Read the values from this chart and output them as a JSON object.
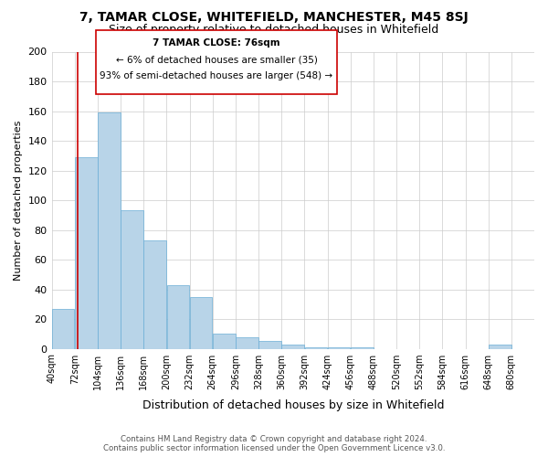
{
  "title": "7, TAMAR CLOSE, WHITEFIELD, MANCHESTER, M45 8SJ",
  "subtitle": "Size of property relative to detached houses in Whitefield",
  "xlabel": "Distribution of detached houses by size in Whitefield",
  "ylabel": "Number of detached properties",
  "bins": [
    40,
    72,
    104,
    136,
    168,
    200,
    232,
    264,
    296,
    328,
    360,
    392,
    424,
    456,
    488,
    520,
    552,
    584,
    616,
    648,
    680
  ],
  "counts": [
    27,
    129,
    159,
    93,
    73,
    43,
    35,
    10,
    8,
    5,
    3,
    1,
    1,
    1,
    0,
    0,
    0,
    0,
    0,
    3
  ],
  "bar_color": "#b8d4e8",
  "bar_edge_color": "#6aaed6",
  "vline_x": 76,
  "vline_color": "#cc0000",
  "ylim": [
    0,
    200
  ],
  "yticks": [
    0,
    20,
    40,
    60,
    80,
    100,
    120,
    140,
    160,
    180,
    200
  ],
  "annotation_title": "7 TAMAR CLOSE: 76sqm",
  "annotation_line1": "← 6% of detached houses are smaller (35)",
  "annotation_line2": "93% of semi-detached houses are larger (548) →",
  "annotation_box_color": "#ffffff",
  "annotation_box_edge": "#cc0000",
  "footer_line1": "Contains HM Land Registry data © Crown copyright and database right 2024.",
  "footer_line2": "Contains public sector information licensed under the Open Government Licence v3.0.",
  "tick_labels": [
    "40sqm",
    "72sqm",
    "104sqm",
    "136sqm",
    "168sqm",
    "200sqm",
    "232sqm",
    "264sqm",
    "296sqm",
    "328sqm",
    "360sqm",
    "392sqm",
    "424sqm",
    "456sqm",
    "488sqm",
    "520sqm",
    "552sqm",
    "584sqm",
    "616sqm",
    "648sqm",
    "680sqm"
  ]
}
